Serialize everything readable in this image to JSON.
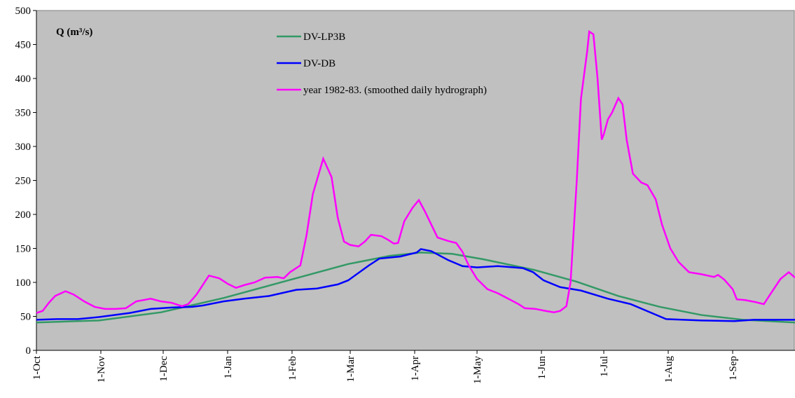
{
  "chart_data": {
    "type": "line",
    "y_label": "Q (m³/s)",
    "xlim": [
      0,
      365
    ],
    "xticks": [
      {
        "value": 0,
        "label": "1-Oct"
      },
      {
        "value": 31,
        "label": "1-Nov"
      },
      {
        "value": 61,
        "label": "1-Dec"
      },
      {
        "value": 92,
        "label": "1-Jan"
      },
      {
        "value": 123,
        "label": "1-Feb"
      },
      {
        "value": 151,
        "label": "1-Mar"
      },
      {
        "value": 182,
        "label": "1-Apr"
      },
      {
        "value": 212,
        "label": "1-May"
      },
      {
        "value": 243,
        "label": "1-Jun"
      },
      {
        "value": 273,
        "label": "1-Jul"
      },
      {
        "value": 304,
        "label": "1-Aug"
      },
      {
        "value": 335,
        "label": "1-Sep"
      }
    ],
    "ylim": [
      0,
      500
    ],
    "yticks": [
      0,
      50,
      100,
      150,
      200,
      250,
      300,
      350,
      400,
      450,
      500
    ],
    "background": "#c0c0c0",
    "legend": "top",
    "series": [
      {
        "name": "DV-LP3B",
        "color": "#339966",
        "x": [
          0,
          30,
          60,
          90,
          120,
          150,
          170,
          185,
          200,
          215,
          240,
          260,
          280,
          300,
          320,
          340,
          365
        ],
        "values": [
          41,
          44,
          56,
          77,
          102,
          127,
          139,
          144,
          142,
          134,
          118,
          101,
          80,
          64,
          52,
          45,
          41
        ]
      },
      {
        "name": "DV-DB",
        "color": "#0000ff",
        "x": [
          0,
          10,
          20,
          30,
          45,
          55,
          65,
          75,
          80,
          90,
          100,
          112,
          125,
          135,
          145,
          150,
          160,
          165,
          175,
          183,
          185,
          190,
          198,
          205,
          212,
          222,
          234,
          239,
          244,
          252,
          262,
          275,
          286,
          296,
          303,
          320,
          336,
          345,
          365
        ],
        "values": [
          45,
          46,
          46,
          49,
          55,
          61,
          63,
          64,
          66,
          72,
          76,
          80,
          89,
          91,
          97,
          103,
          125,
          135,
          138,
          144,
          149,
          146,
          133,
          124,
          122,
          124,
          121,
          115,
          103,
          93,
          88,
          76,
          68,
          55,
          46,
          44,
          43,
          45,
          45
        ]
      },
      {
        "name": "year 1982-83. (smoothed daily hydrograph)",
        "color": "#ff00ff",
        "x": [
          0,
          3,
          6,
          9,
          14,
          18,
          23,
          28,
          33,
          38,
          43,
          48,
          55,
          60,
          65,
          70,
          73,
          77,
          83,
          88,
          92,
          96,
          100,
          105,
          110,
          116,
          119,
          122,
          127,
          130,
          133,
          138,
          142,
          145,
          148,
          151,
          155,
          158,
          161,
          166,
          169,
          172,
          174,
          177,
          181,
          184,
          187,
          190,
          193,
          198,
          202,
          205,
          208,
          212,
          217,
          222,
          227,
          232,
          235,
          240,
          245,
          249,
          252,
          255,
          257,
          260,
          262,
          265,
          266,
          268,
          270,
          272,
          273,
          275,
          277,
          280,
          282,
          284,
          287,
          291,
          294,
          298,
          301,
          305,
          309,
          314,
          320,
          323,
          326,
          328,
          331,
          335,
          337,
          341,
          346,
          350,
          353,
          358,
          362,
          365
        ],
        "values": [
          55,
          58,
          70,
          80,
          87,
          82,
          72,
          64,
          61,
          61,
          62,
          72,
          76,
          72,
          70,
          65,
          68,
          82,
          110,
          106,
          98,
          92,
          96,
          100,
          107,
          108,
          106,
          115,
          125,
          170,
          230,
          282,
          255,
          195,
          160,
          155,
          153,
          160,
          170,
          168,
          163,
          157,
          158,
          190,
          210,
          221,
          204,
          185,
          166,
          161,
          158,
          145,
          125,
          105,
          90,
          84,
          76,
          68,
          62,
          61,
          58,
          56,
          58,
          65,
          100,
          250,
          370,
          440,
          469,
          465,
          400,
          310,
          318,
          340,
          350,
          371,
          362,
          310,
          260,
          247,
          243,
          222,
          185,
          150,
          130,
          115,
          112,
          110,
          108,
          111,
          104,
          90,
          75,
          74,
          71,
          68,
          82,
          105,
          115,
          107
        ]
      }
    ]
  }
}
